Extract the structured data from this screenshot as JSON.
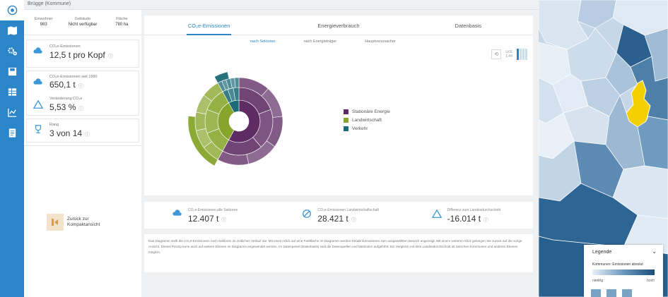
{
  "panel": {
    "title": "Brügge (Kommune)"
  },
  "facts": [
    {
      "label": "Einwohner",
      "value": "983"
    },
    {
      "label": "Gebäude",
      "value": "Nicht verfügbar"
    },
    {
      "label": "Fläche",
      "value": "780 ha"
    }
  ],
  "kpi_cards": [
    {
      "label": "CO₂e-Emissionen",
      "value": "12,5 t pro Kopf",
      "icon": "cloud-icon"
    },
    {
      "label": "CO₂e-Emissionen seit 1990",
      "value": "650,1 t",
      "icon": "cloud-icon"
    },
    {
      "label": "Veränderung CO₂e",
      "value": "5,53 %",
      "icon": "delta-icon"
    },
    {
      "label": "Rang",
      "value": "3 von 14",
      "icon": "trophy-icon"
    }
  ],
  "back_button": {
    "label": "Zurück zur Kompaktansicht"
  },
  "tabs": [
    {
      "label": "CO₂e-Emissionen",
      "active": true
    },
    {
      "label": "Energieverbrauch",
      "active": false
    },
    {
      "label": "Datenbasis",
      "active": false
    }
  ],
  "subtabs": [
    {
      "label": "nach Sektoren",
      "active": true
    },
    {
      "label": "nach Energieträger",
      "active": false
    },
    {
      "label": "Hauptverursacher",
      "active": false
    }
  ],
  "chart_tools": {
    "toggle_top": "LKE",
    "toggle_bottom": "1:44"
  },
  "chart_data": {
    "type": "pie",
    "title": "",
    "series": [
      {
        "name": "Stationäre Energie",
        "value": 58,
        "color": "#5e2b63"
      },
      {
        "name": "Landwirtschaft",
        "value": 34,
        "color": "#86a52a"
      },
      {
        "name": "Verkehr",
        "value": 8,
        "color": "#1c6b78"
      }
    ],
    "legend_position": "right"
  },
  "kpi_row": [
    {
      "label": "CO₂e-Emissionen alle Sektoren",
      "value": "12.407 t",
      "icon": "cloud-icon"
    },
    {
      "label": "CO₂e-Emissionen Landwirtschaftschaft",
      "value": "28.421 t",
      "icon": "diameter-icon"
    },
    {
      "label": "Differenz zum Landesdurchschnitt",
      "value": "-16.014 t",
      "icon": "delta-icon"
    }
  ],
  "description": "Das Diagramm stellt die CO₂e-Emissionen nach Sektoren im zeitlichen Verlauf dar. Mit einem Klick auf eine Farbfläche im Diagramm werden Detailinformationen zum ausgewählten Bereich angezeigt. Mit einem weiteren Klick gelangen Sie zurück auf die vorige Ansicht. Dieses Prinzip kann auch auf weitere Ebenen im Diagramm angewendet werden. Im Datenpanel (Datenbasis) sind die Datenquellen und Methoden aufgeführt. Ein Vergleich mit dem Landesdurchschnitt ist zwischen Kommunen und anderen Ebenen möglich.",
  "legend_panel": {
    "title": "Legende",
    "subtitle": "Kommunen: Emissionen absolut",
    "low": "niedrig",
    "high": "hoch"
  },
  "colors": {
    "accent": "#2a86c8",
    "nav": "#2a86c8",
    "highlight": "#f5d000"
  }
}
